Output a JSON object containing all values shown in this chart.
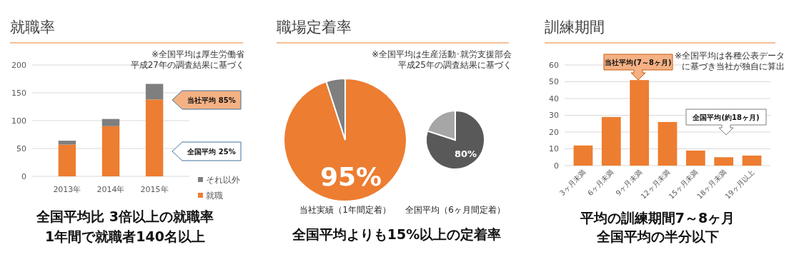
{
  "chart_data": [
    {
      "type": "bar",
      "title": "就職率",
      "stacked": true,
      "categories": [
        "2013年",
        "2014年",
        "2015年"
      ],
      "series": [
        {
          "name": "就職",
          "color": "#ed7d31",
          "values": [
            57,
            90,
            138
          ]
        },
        {
          "name": "それ以外",
          "color": "#7f7f7f",
          "values": [
            7,
            13,
            28
          ]
        }
      ],
      "ylim": [
        0,
        200
      ],
      "yticks": [
        0,
        50,
        100,
        150,
        200
      ],
      "grid": "y",
      "legend": "bottom right",
      "annotations": [
        "当社平均 85%",
        "全国平均 25%",
        "※全国平均は厚生労働省",
        "平成27年の調査結果に基づく",
        "全国平均比 3倍以上の就職率",
        "1年間で就職者140名以上"
      ]
    },
    {
      "type": "pie",
      "title": "職場定着率",
      "categories": [
        null,
        null
      ],
      "values": [
        95,
        5
      ],
      "colors": [
        "#ed7d31",
        "#7f7f7f"
      ],
      "value_labels": [
        "95%",
        null
      ],
      "xlabel": "当社実績（1年間定着）"
    },
    {
      "type": "pie",
      "categories": [
        null,
        null
      ],
      "values": [
        80,
        20
      ],
      "colors": [
        "#595959",
        "#a6a6a6"
      ],
      "value_labels": [
        "80%",
        null
      ],
      "xlabel": "全国平均（6ヶ月間定着）",
      "annotations": [
        "※全国平均は生産活動･就労支援部会",
        "平成25年の調査結果に基づく",
        "全国平均よりも15%以上の定着率"
      ]
    },
    {
      "type": "bar",
      "title": "訓練期間",
      "categories": [
        "3ヶ月未満",
        "6ヶ月未満",
        "9ヶ月未満",
        "12ヶ月未満",
        "15ヶ月未満",
        "18ヶ月未満",
        "19ヶ月以上"
      ],
      "values": [
        12,
        29,
        51,
        26,
        9,
        5,
        6
      ],
      "color": "#ed7d31",
      "ylim": [
        0,
        60
      ],
      "yticks": [
        0,
        10,
        20,
        30,
        40,
        50,
        60
      ],
      "grid": "y",
      "annotations": [
        "当社平均(7～8ヶ月)",
        "全国平均(約18ヶ月)",
        "※全国平均は各種公表データ",
        "に基づき当社が独自に算出",
        "平均の訓練期間7～8ヶ月",
        "全国平均の半分以下"
      ]
    }
  ]
}
